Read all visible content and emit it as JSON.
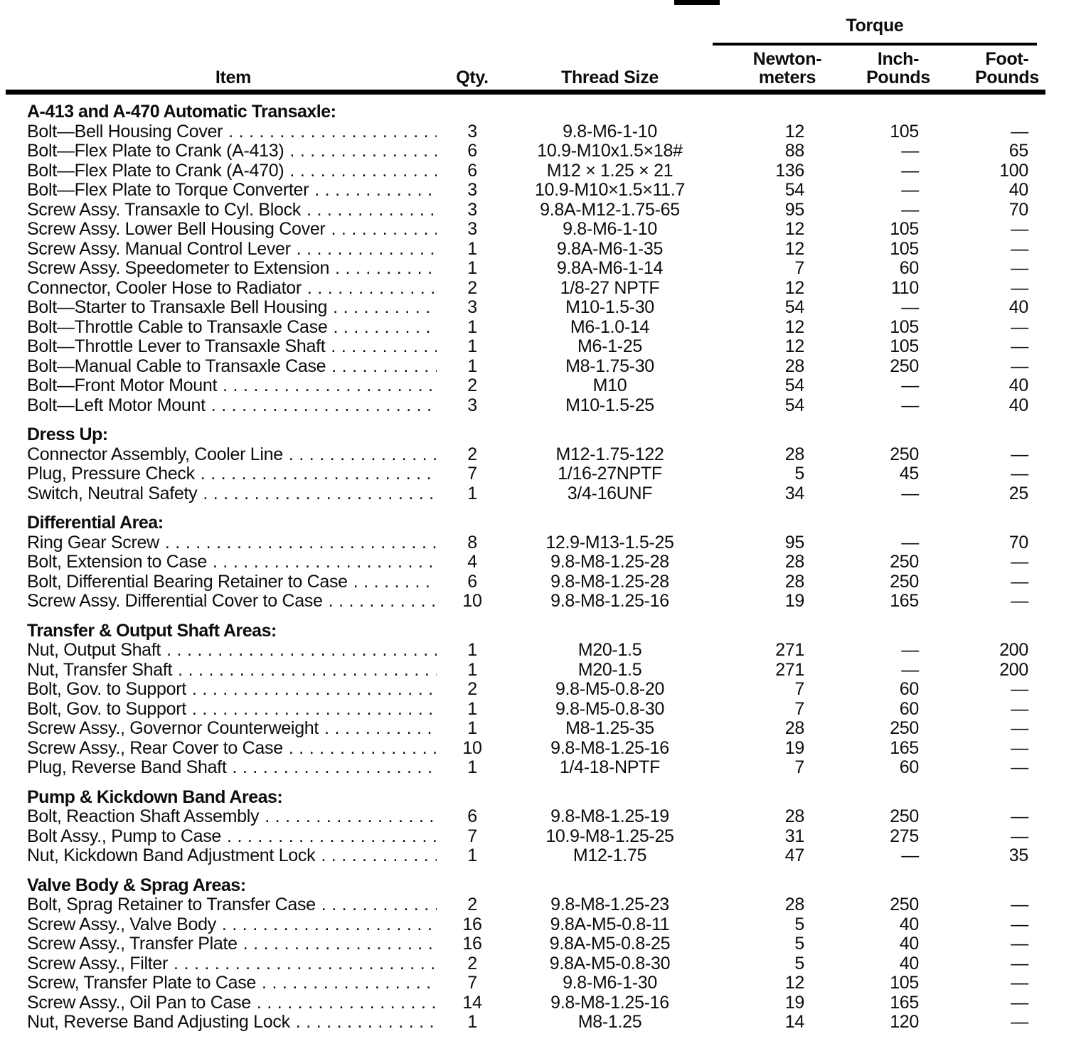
{
  "page": {
    "background": "#ffffff",
    "text_color": "#0d0d0d",
    "rule_color": "#000000"
  },
  "table": {
    "headers": {
      "item": "Item",
      "qty": "Qty.",
      "thread_size": "Thread Size",
      "torque_group": "Torque",
      "newton_meters": [
        "Newton-",
        "meters"
      ],
      "inch_pounds": [
        "Inch-",
        "Pounds"
      ],
      "foot_pounds": [
        "Foot-",
        "Pounds"
      ]
    },
    "sections": [
      {
        "title": "A-413 and A-470 Automatic Transaxle:",
        "rows": [
          {
            "item": "Bolt—Bell Housing Cover",
            "qty": "3",
            "thread": "9.8-M6-1-10",
            "nm": "12",
            "inlb": "105",
            "ftlb": "—"
          },
          {
            "item": "Bolt—Flex Plate to Crank (A-413)",
            "qty": "6",
            "thread": "10.9-M10x1.5×18#",
            "nm": "88",
            "inlb": "—",
            "ftlb": "65"
          },
          {
            "item": "Bolt—Flex Plate to Crank (A-470)",
            "qty": "6",
            "thread": "M12 × 1.25 × 21",
            "nm": "136",
            "inlb": "—",
            "ftlb": "100"
          },
          {
            "item": "Bolt—Flex Plate to Torque Converter",
            "qty": "3",
            "thread": "10.9-M10×1.5×11.7",
            "nm": "54",
            "inlb": "—",
            "ftlb": "40"
          },
          {
            "item": "Screw Assy. Transaxle to Cyl. Block",
            "qty": "3",
            "thread": "9.8A-M12-1.75-65",
            "nm": "95",
            "inlb": "—",
            "ftlb": "70"
          },
          {
            "item": "Screw Assy. Lower Bell Housing Cover",
            "qty": "3",
            "thread": "9.8-M6-1-10",
            "nm": "12",
            "inlb": "105",
            "ftlb": "—"
          },
          {
            "item": "Screw Assy. Manual Control Lever",
            "qty": "1",
            "thread": "9.8A-M6-1-35",
            "nm": "12",
            "inlb": "105",
            "ftlb": "—"
          },
          {
            "item": "Screw Assy. Speedometer to Extension",
            "qty": "1",
            "thread": "9.8A-M6-1-14",
            "nm": "7",
            "inlb": "60",
            "ftlb": "—"
          },
          {
            "item": "Connector, Cooler Hose to Radiator",
            "qty": "2",
            "thread": "1/8-27 NPTF",
            "nm": "12",
            "inlb": "110",
            "ftlb": "—"
          },
          {
            "item": "Bolt—Starter to Transaxle Bell Housing",
            "qty": "3",
            "thread": "M10-1.5-30",
            "nm": "54",
            "inlb": "—",
            "ftlb": "40"
          },
          {
            "item": "Bolt—Throttle Cable to Transaxle Case",
            "qty": "1",
            "thread": "M6-1.0-14",
            "nm": "12",
            "inlb": "105",
            "ftlb": "—"
          },
          {
            "item": "Bolt—Throttle Lever to Transaxle Shaft",
            "qty": "1",
            "thread": "M6-1-25",
            "nm": "12",
            "inlb": "105",
            "ftlb": "—"
          },
          {
            "item": "Bolt—Manual Cable to Transaxle Case",
            "qty": "1",
            "thread": "M8-1.75-30",
            "nm": "28",
            "inlb": "250",
            "ftlb": "—"
          },
          {
            "item": "Bolt—Front Motor Mount",
            "qty": "2",
            "thread": "M10",
            "nm": "54",
            "inlb": "—",
            "ftlb": "40"
          },
          {
            "item": "Bolt—Left Motor Mount",
            "qty": "3",
            "thread": "M10-1.5-25",
            "nm": "54",
            "inlb": "—",
            "ftlb": "40"
          }
        ]
      },
      {
        "title": "Dress Up:",
        "rows": [
          {
            "item": "Connector Assembly, Cooler Line",
            "qty": "2",
            "thread": "M12-1.75-122",
            "nm": "28",
            "inlb": "250",
            "ftlb": "—"
          },
          {
            "item": "Plug, Pressure Check",
            "qty": "7",
            "thread": "1/16-27NPTF",
            "nm": "5",
            "inlb": "45",
            "ftlb": "—"
          },
          {
            "item": "Switch, Neutral Safety",
            "qty": "1",
            "thread": "3/4-16UNF",
            "nm": "34",
            "inlb": "—",
            "ftlb": "25"
          }
        ]
      },
      {
        "title": "Differential Area:",
        "rows": [
          {
            "item": "Ring Gear Screw",
            "qty": "8",
            "thread": "12.9-M13-1.5-25",
            "nm": "95",
            "inlb": "—",
            "ftlb": "70"
          },
          {
            "item": "Bolt, Extension to Case",
            "qty": "4",
            "thread": "9.8-M8-1.25-28",
            "nm": "28",
            "inlb": "250",
            "ftlb": "—"
          },
          {
            "item": "Bolt, Differential Bearing Retainer to Case",
            "qty": "6",
            "thread": "9.8-M8-1.25-28",
            "nm": "28",
            "inlb": "250",
            "ftlb": "—"
          },
          {
            "item": "Screw Assy. Differential Cover to Case",
            "qty": "10",
            "thread": "9.8-M8-1.25-16",
            "nm": "19",
            "inlb": "165",
            "ftlb": "—"
          }
        ]
      },
      {
        "title": "Transfer & Output Shaft Areas:",
        "rows": [
          {
            "item": "Nut, Output Shaft",
            "qty": "1",
            "thread": "M20-1.5",
            "nm": "271",
            "inlb": "—",
            "ftlb": "200"
          },
          {
            "item": "Nut, Transfer Shaft",
            "qty": "1",
            "thread": "M20-1.5",
            "nm": "271",
            "inlb": "—",
            "ftlb": "200"
          },
          {
            "item": "Bolt, Gov. to Support",
            "qty": "2",
            "thread": "9.8-M5-0.8-20",
            "nm": "7",
            "inlb": "60",
            "ftlb": "—"
          },
          {
            "item": "Bolt, Gov. to Support",
            "qty": "1",
            "thread": "9.8-M5-0.8-30",
            "nm": "7",
            "inlb": "60",
            "ftlb": "—"
          },
          {
            "item": "Screw Assy., Governor Counterweight",
            "qty": "1",
            "thread": "M8-1.25-35",
            "nm": "28",
            "inlb": "250",
            "ftlb": "—"
          },
          {
            "item": "Screw Assy., Rear Cover to Case",
            "qty": "10",
            "thread": "9.8-M8-1.25-16",
            "nm": "19",
            "inlb": "165",
            "ftlb": "—"
          },
          {
            "item": "Plug, Reverse Band Shaft",
            "qty": "1",
            "thread": "1/4-18-NPTF",
            "nm": "7",
            "inlb": "60",
            "ftlb": "—"
          }
        ]
      },
      {
        "title": "Pump & Kickdown Band Areas:",
        "rows": [
          {
            "item": "Bolt, Reaction Shaft Assembly",
            "qty": "6",
            "thread": "9.8-M8-1.25-19",
            "nm": "28",
            "inlb": "250",
            "ftlb": "—"
          },
          {
            "item": "Bolt Assy., Pump to Case",
            "qty": "7",
            "thread": "10.9-M8-1.25-25",
            "nm": "31",
            "inlb": "275",
            "ftlb": "—"
          },
          {
            "item": "Nut, Kickdown Band Adjustment Lock",
            "qty": "1",
            "thread": "M12-1.75",
            "nm": "47",
            "inlb": "—",
            "ftlb": "35"
          }
        ]
      },
      {
        "title": "Valve Body & Sprag Areas:",
        "rows": [
          {
            "item": "Bolt, Sprag Retainer to Transfer Case",
            "qty": "2",
            "thread": "9.8-M8-1.25-23",
            "nm": "28",
            "inlb": "250",
            "ftlb": "—"
          },
          {
            "item": "Screw Assy., Valve Body",
            "qty": "16",
            "thread": "9.8A-M5-0.8-11",
            "nm": "5",
            "inlb": "40",
            "ftlb": "—"
          },
          {
            "item": "Screw Assy., Transfer Plate",
            "qty": "16",
            "thread": "9.8A-M5-0.8-25",
            "nm": "5",
            "inlb": "40",
            "ftlb": "—"
          },
          {
            "item": "Screw Assy., Filter",
            "qty": "2",
            "thread": "9.8A-M5-0.8-30",
            "nm": "5",
            "inlb": "40",
            "ftlb": "—"
          },
          {
            "item": "Screw, Transfer Plate to Case",
            "qty": "7",
            "thread": "9.8-M6-1-30",
            "nm": "12",
            "inlb": "105",
            "ftlb": "—"
          },
          {
            "item": "Screw Assy., Oil Pan to Case",
            "qty": "14",
            "thread": "9.8-M8-1.25-16",
            "nm": "19",
            "inlb": "165",
            "ftlb": "—"
          },
          {
            "item": "Nut, Reverse Band Adjusting Lock",
            "qty": "1",
            "thread": "M8-1.25",
            "nm": "14",
            "inlb": "120",
            "ftlb": "—"
          }
        ]
      }
    ]
  }
}
